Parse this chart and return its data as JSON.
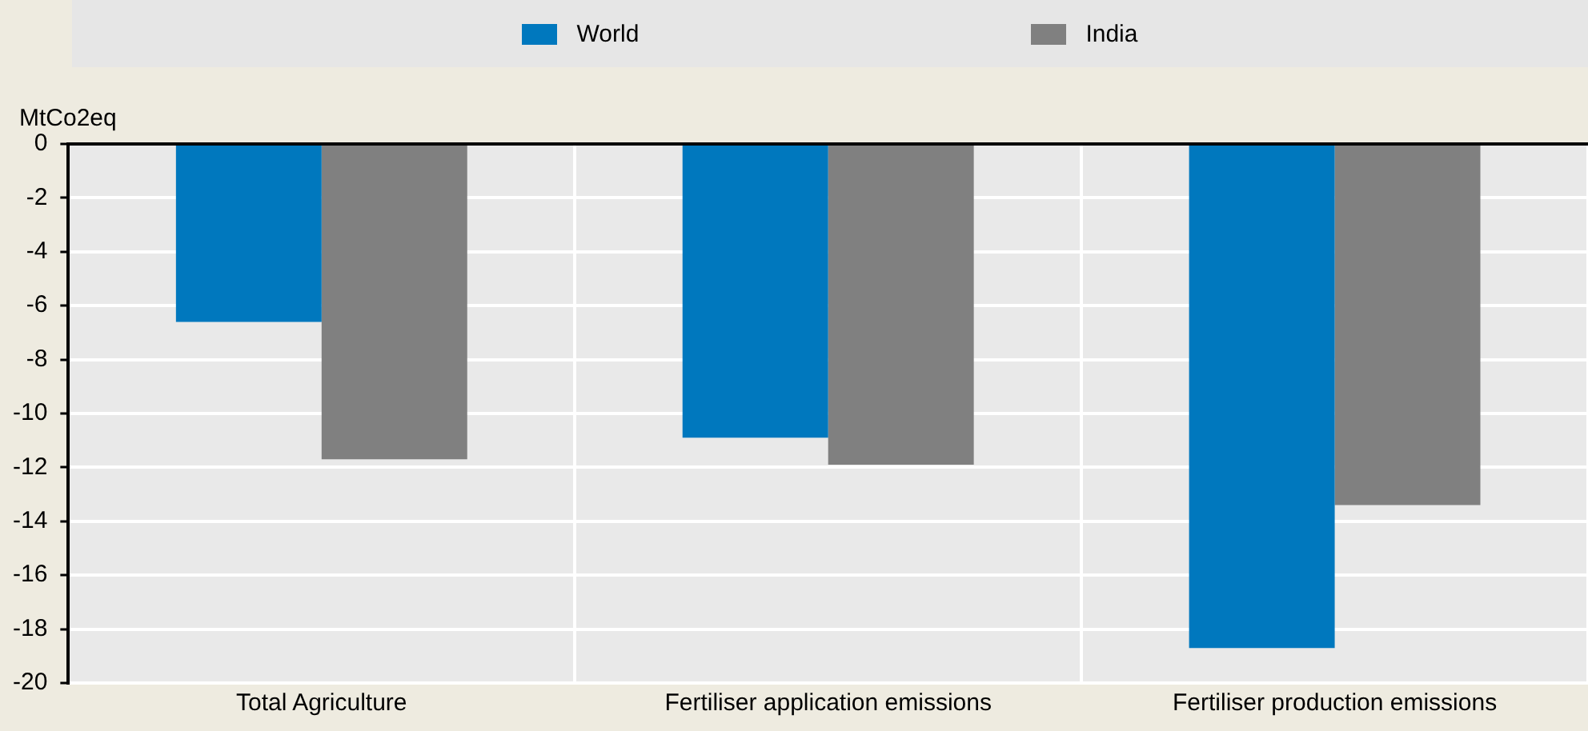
{
  "chart_data": {
    "type": "bar",
    "ylabel": "MtCo2eq",
    "categories": [
      "Total Agriculture",
      "Fertiliser application emissions",
      "Fertiliser production emissions"
    ],
    "series": [
      {
        "name": "World",
        "color": "#0078be",
        "values": [
          -6.6,
          -10.9,
          -18.7
        ]
      },
      {
        "name": "India",
        "color": "#808080",
        "values": [
          -11.7,
          -11.9,
          -13.4
        ]
      }
    ],
    "ylim": [
      -20,
      0
    ],
    "yticks": [
      0,
      -2,
      -4,
      -6,
      -8,
      -10,
      -12,
      -14,
      -16,
      -18,
      -20
    ],
    "grid": true,
    "legend": "top"
  }
}
